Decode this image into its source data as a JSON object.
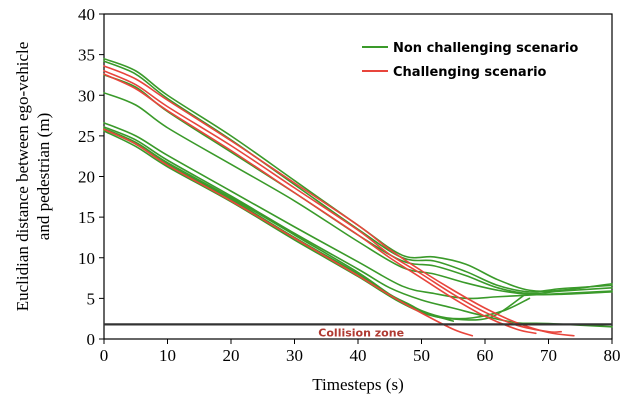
{
  "chart_data": {
    "type": "line",
    "xlabel": "Timesteps (s)",
    "ylabel_lines": [
      "Euclidian distance between ego-vehicle",
      "and pedestrian (m)"
    ],
    "xlim": [
      0,
      80
    ],
    "ylim": [
      0,
      40
    ],
    "xticks": [
      0,
      10,
      20,
      30,
      40,
      50,
      60,
      70,
      80
    ],
    "yticks": [
      0,
      5,
      10,
      15,
      20,
      25,
      30,
      35,
      40
    ],
    "grid": false,
    "legend_position": "top-right",
    "legend": [
      {
        "label": "Non challenging scenario",
        "color": "#3a9a2a"
      },
      {
        "label": "Challenging scenario",
        "color": "#e8453c"
      }
    ],
    "colors": {
      "non_challenging": "#3a9a2a",
      "challenging": "#e8453c",
      "collision_line": "#333333",
      "collision_label": "#b03a32"
    },
    "collision_zone": {
      "label": "Collision zone",
      "y": 1.8,
      "label_x": 40.5
    },
    "series": [
      {
        "group": "non_challenging",
        "x": [
          0,
          5,
          10,
          20,
          30,
          40,
          47,
          52,
          57,
          62,
          67,
          72,
          80
        ],
        "y": [
          34.5,
          33.0,
          30.0,
          25.0,
          19.5,
          14.0,
          10.3,
          10.1,
          9.2,
          7.3,
          6.0,
          6.0,
          6.8
        ]
      },
      {
        "group": "non_challenging",
        "x": [
          0,
          5,
          10,
          20,
          30,
          40,
          47,
          52,
          57,
          62,
          67,
          72,
          80
        ],
        "y": [
          34.2,
          32.6,
          29.6,
          24.5,
          19.0,
          13.5,
          10.0,
          9.6,
          8.3,
          6.6,
          5.8,
          6.2,
          6.6
        ]
      },
      {
        "group": "non_challenging",
        "x": [
          0,
          5,
          10,
          20,
          30,
          40,
          47,
          52,
          57,
          62,
          67,
          72,
          80
        ],
        "y": [
          32.5,
          31.0,
          28.0,
          23.0,
          18.0,
          12.8,
          9.6,
          9.0,
          7.8,
          6.3,
          5.6,
          5.9,
          6.3
        ]
      },
      {
        "group": "non_challenging",
        "x": [
          0,
          5,
          10,
          20,
          30,
          40,
          47,
          52,
          57,
          62,
          67,
          72,
          80
        ],
        "y": [
          30.3,
          28.8,
          26.0,
          21.5,
          17.0,
          12.0,
          8.8,
          8.0,
          6.9,
          6.0,
          5.5,
          5.5,
          5.8
        ]
      },
      {
        "group": "non_challenging",
        "x": [
          0,
          5,
          10,
          20,
          30,
          40,
          47,
          52,
          57,
          62,
          67,
          72,
          80
        ],
        "y": [
          26.6,
          25.0,
          22.6,
          18.2,
          13.8,
          9.5,
          6.5,
          5.6,
          5.0,
          5.2,
          5.4,
          5.6,
          5.9
        ]
      },
      {
        "group": "non_challenging",
        "x": [
          0,
          5,
          10,
          20,
          30,
          40,
          45,
          50,
          55,
          60,
          65,
          70,
          80
        ],
        "y": [
          26.1,
          24.5,
          22.0,
          17.6,
          13.0,
          8.6,
          6.3,
          4.8,
          3.8,
          2.8,
          2.0,
          1.9,
          1.5
        ]
      },
      {
        "group": "non_challenging",
        "x": [
          0,
          5,
          10,
          20,
          30,
          40,
          45,
          50,
          54,
          58,
          63,
          67
        ],
        "y": [
          25.8,
          24.0,
          21.5,
          17.2,
          12.5,
          8.0,
          5.4,
          3.5,
          2.6,
          2.6,
          3.5,
          5.0
        ]
      },
      {
        "group": "non_challenging",
        "x": [
          0,
          5,
          10,
          20,
          30,
          40,
          46,
          51,
          56,
          61,
          66
        ],
        "y": [
          25.6,
          23.7,
          21.2,
          16.9,
          12.2,
          7.7,
          4.8,
          3.0,
          2.4,
          2.7,
          5.3
        ]
      },
      {
        "group": "non_challenging",
        "x": [
          0,
          5,
          10,
          20,
          30,
          40,
          45,
          48,
          51,
          55
        ],
        "y": [
          25.9,
          24.2,
          21.7,
          17.4,
          12.8,
          8.2,
          5.5,
          4.3,
          3.1,
          2.2
        ]
      },
      {
        "group": "challenging",
        "x": [
          0,
          5,
          10,
          20,
          30,
          40,
          45,
          50,
          55,
          60,
          65,
          70,
          74
        ],
        "y": [
          33.6,
          32.0,
          29.4,
          24.4,
          19.2,
          14.0,
          11.0,
          8.4,
          6.0,
          3.8,
          2.0,
          0.8,
          0.4
        ]
      },
      {
        "group": "challenging",
        "x": [
          0,
          5,
          10,
          20,
          30,
          40,
          45,
          50,
          55,
          60,
          65,
          70,
          72
        ],
        "y": [
          33.0,
          31.3,
          28.6,
          23.8,
          18.6,
          13.4,
          10.4,
          8.0,
          5.5,
          3.3,
          1.7,
          0.9,
          0.9
        ]
      },
      {
        "group": "challenging",
        "x": [
          0,
          5,
          10,
          20,
          30,
          40,
          45,
          50,
          55,
          60,
          65,
          68
        ],
        "y": [
          32.6,
          30.8,
          28.1,
          23.2,
          18.0,
          12.8,
          10.0,
          7.5,
          5.0,
          2.8,
          1.2,
          0.7
        ]
      },
      {
        "group": "challenging",
        "x": [
          0,
          5,
          10,
          20,
          30,
          40,
          45,
          50,
          55,
          58
        ],
        "y": [
          25.8,
          24.0,
          21.4,
          17.0,
          12.4,
          7.8,
          5.4,
          3.2,
          1.2,
          0.4
        ]
      }
    ]
  }
}
